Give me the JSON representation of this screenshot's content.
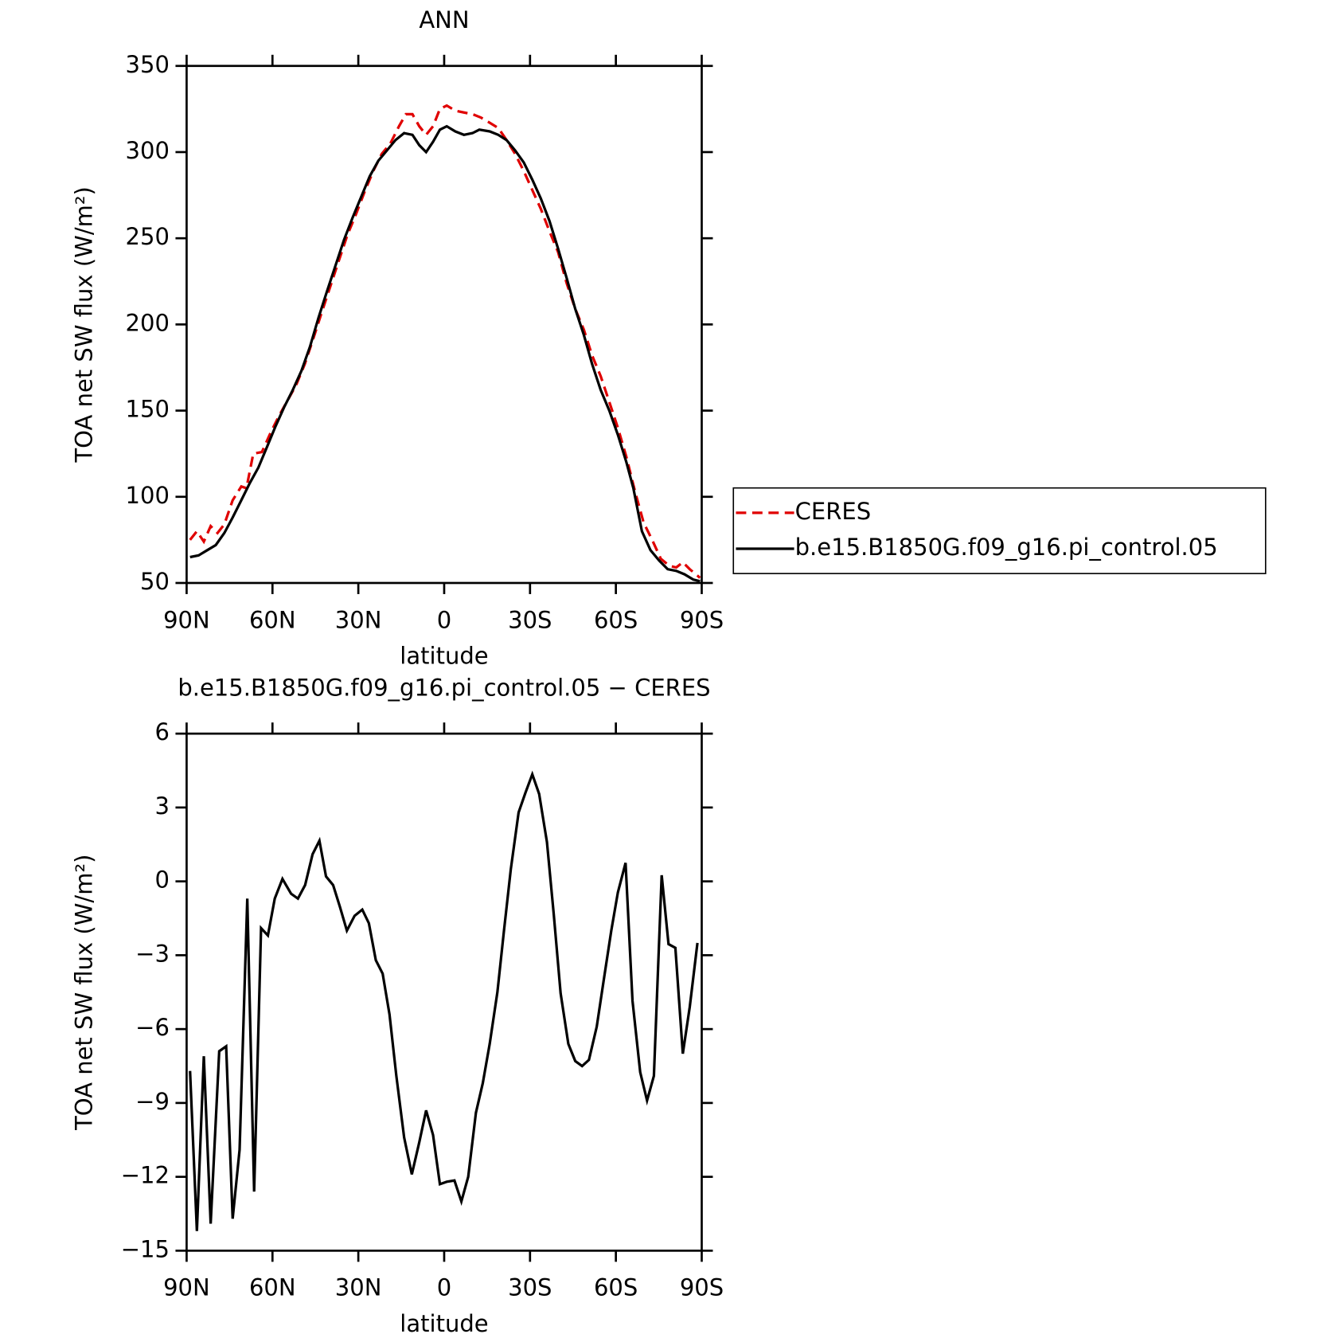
{
  "chart_data": [
    {
      "type": "line",
      "title": "ANN",
      "xlabel": "latitude",
      "ylabel": "TOA net SW flux (W/m²)",
      "xlim": [
        90,
        -90
      ],
      "xticks": [
        {
          "value": 90,
          "label": "90N"
        },
        {
          "value": 60,
          "label": "60N"
        },
        {
          "value": 30,
          "label": "30N"
        },
        0,
        {
          "value": -30,
          "label": "30S"
        },
        {
          "value": -60,
          "label": "60S"
        },
        {
          "value": -90,
          "label": "90S"
        }
      ],
      "ylim": [
        50,
        350
      ],
      "yticks": [
        50,
        100,
        150,
        200,
        250,
        300,
        350
      ],
      "legend": "right",
      "series": [
        {
          "name": "CERES",
          "color": "#e00000",
          "line_style": "dashed",
          "x": [
            88.8,
            86.4,
            84.0,
            81.6,
            79.2,
            76.8,
            73.9,
            70.9,
            69.1,
            66.7,
            63.7,
            60.7,
            57.7,
            54.7,
            51.7,
            48.7,
            45.7,
            42.8,
            39.8,
            36.8,
            33.8,
            30.8,
            27.8,
            24.8,
            21.8,
            18.8,
            15.8,
            13.4,
            11.1,
            8.7,
            6.3,
            3.9,
            1.5,
            -0.9,
            -3.9,
            -6.9,
            -9.9,
            -12.9,
            -15.9,
            -18.9,
            -21.8,
            -24.8,
            -27.8,
            -30.8,
            -33.8,
            -36.8,
            -39.8,
            -42.8,
            -45.8,
            -48.8,
            -51.7,
            -54.7,
            -57.7,
            -60.7,
            -63.7,
            -66.7,
            -69.7,
            -72.7,
            -75.7,
            -78.7,
            -81.1,
            -83.4,
            -85.8,
            -89.4
          ],
          "values": [
            75,
            80,
            74,
            83,
            79,
            84,
            98,
            106,
            105,
            125,
            126,
            137,
            147,
            156,
            165,
            177,
            192,
            207,
            222,
            237,
            252,
            264,
            277,
            289,
            299,
            305,
            315,
            322,
            322,
            315,
            310,
            315,
            325,
            327,
            324,
            323,
            322,
            320,
            317,
            314,
            307,
            299,
            289,
            278,
            267,
            254,
            242,
            224,
            209,
            197,
            182,
            170,
            155,
            140,
            123,
            103,
            85,
            75,
            64,
            60,
            59,
            62,
            58,
            53
          ]
        },
        {
          "name": "b.e15.B1850G.f09_g16.pi_control.05",
          "color": "#000000",
          "line_style": "solid",
          "x": [
            88.8,
            85.8,
            82.8,
            79.8,
            76.8,
            73.9,
            70.9,
            67.9,
            64.9,
            61.9,
            58.9,
            55.9,
            52.9,
            49.9,
            46.9,
            43.9,
            41.0,
            38.0,
            35.0,
            32.0,
            29.0,
            26.0,
            23.0,
            20.0,
            17.0,
            14.0,
            11.1,
            8.7,
            6.3,
            3.9,
            1.5,
            -0.9,
            -3.9,
            -6.9,
            -9.9,
            -12.3,
            -15.9,
            -18.9,
            -21.8,
            -24.8,
            -27.8,
            -30.8,
            -33.8,
            -36.8,
            -39.8,
            -42.8,
            -45.8,
            -48.8,
            -51.7,
            -54.7,
            -57.7,
            -60.7,
            -63.7,
            -66.1,
            -69.1,
            -72.1,
            -75.1,
            -78.1,
            -81.1,
            -84.0,
            -87.0,
            -89.4
          ],
          "values": [
            65,
            66,
            69,
            72,
            79,
            88,
            98,
            108,
            117,
            129,
            141,
            152,
            162,
            173,
            187,
            204,
            219,
            234,
            249,
            262,
            274,
            286,
            295,
            301,
            307,
            311,
            310,
            304,
            300,
            306,
            313,
            315,
            312,
            310,
            311,
            313,
            312,
            310,
            307,
            301,
            294,
            284,
            273,
            260,
            244,
            227,
            209,
            194,
            177,
            162,
            150,
            136,
            120,
            105,
            80,
            69,
            63,
            58,
            57,
            55,
            52,
            51
          ]
        }
      ]
    },
    {
      "type": "line",
      "title": "b.e15.B1850G.f09_g16.pi_control.05 − CERES",
      "xlabel": "latitude",
      "ylabel": "TOA net SW flux (W/m²)",
      "xlim": [
        90,
        -90
      ],
      "xticks": [
        {
          "value": 90,
          "label": "90N"
        },
        {
          "value": 60,
          "label": "60N"
        },
        {
          "value": 30,
          "label": "30N"
        },
        0,
        {
          "value": -30,
          "label": "30S"
        },
        {
          "value": -60,
          "label": "60S"
        },
        {
          "value": -90,
          "label": "90S"
        }
      ],
      "ylim": [
        -15,
        6
      ],
      "yticks": [
        {
          "value": -15,
          "label": "−15"
        },
        {
          "value": -12,
          "label": "−12"
        },
        {
          "value": -9,
          "label": "−9"
        },
        {
          "value": -6,
          "label": "−6"
        },
        {
          "value": -3,
          "label": "−3"
        },
        0,
        3,
        6
      ],
      "color": "#000000",
      "x": [
        88.8,
        86.4,
        84.0,
        81.6,
        78.6,
        76.2,
        73.9,
        71.5,
        68.8,
        66.4,
        64.0,
        61.6,
        59.2,
        56.5,
        53.5,
        51.1,
        48.6,
        46.0,
        43.6,
        41.3,
        38.8,
        36.4,
        34.0,
        31.3,
        28.6,
        26.3,
        23.9,
        21.5,
        19.1,
        16.7,
        14.0,
        11.3,
        8.7,
        6.3,
        3.9,
        1.5,
        -0.9,
        -3.6,
        -6.0,
        -8.4,
        -11.1,
        -13.5,
        -15.9,
        -18.6,
        -20.9,
        -23.3,
        -26.0,
        -28.4,
        -30.8,
        -33.2,
        -35.9,
        -38.3,
        -40.7,
        -43.4,
        -45.8,
        -48.2,
        -50.6,
        -53.3,
        -55.7,
        -58.4,
        -60.7,
        -63.4,
        -65.8,
        -68.5,
        -70.9,
        -73.3,
        -76.0,
        -78.4,
        -80.8,
        -83.4,
        -85.8,
        -88.5
      ],
      "values": [
        -7.7,
        -14.2,
        -7.1,
        -13.9,
        -6.9,
        -6.7,
        -13.7,
        -10.9,
        -0.7,
        -12.6,
        -1.9,
        -2.2,
        -0.7,
        0.1,
        -0.5,
        -0.7,
        -0.15,
        1.1,
        1.65,
        0.2,
        -0.15,
        -1.05,
        -2.0,
        -1.4,
        -1.15,
        -1.7,
        -3.2,
        -3.75,
        -5.4,
        -7.9,
        -10.4,
        -11.9,
        -10.6,
        -9.3,
        -10.3,
        -12.3,
        -12.2,
        -12.15,
        -13.0,
        -12.0,
        -9.4,
        -8.2,
        -6.6,
        -4.5,
        -2.0,
        0.5,
        2.8,
        3.6,
        4.35,
        3.55,
        1.6,
        -1.35,
        -4.55,
        -6.6,
        -7.3,
        -7.5,
        -7.25,
        -5.9,
        -4.05,
        -2.0,
        -0.45,
        0.75,
        -4.85,
        -7.75,
        -8.9,
        -7.9,
        0.25,
        -2.55,
        -2.7,
        -7.0,
        -5.1,
        -2.5
      ]
    }
  ]
}
